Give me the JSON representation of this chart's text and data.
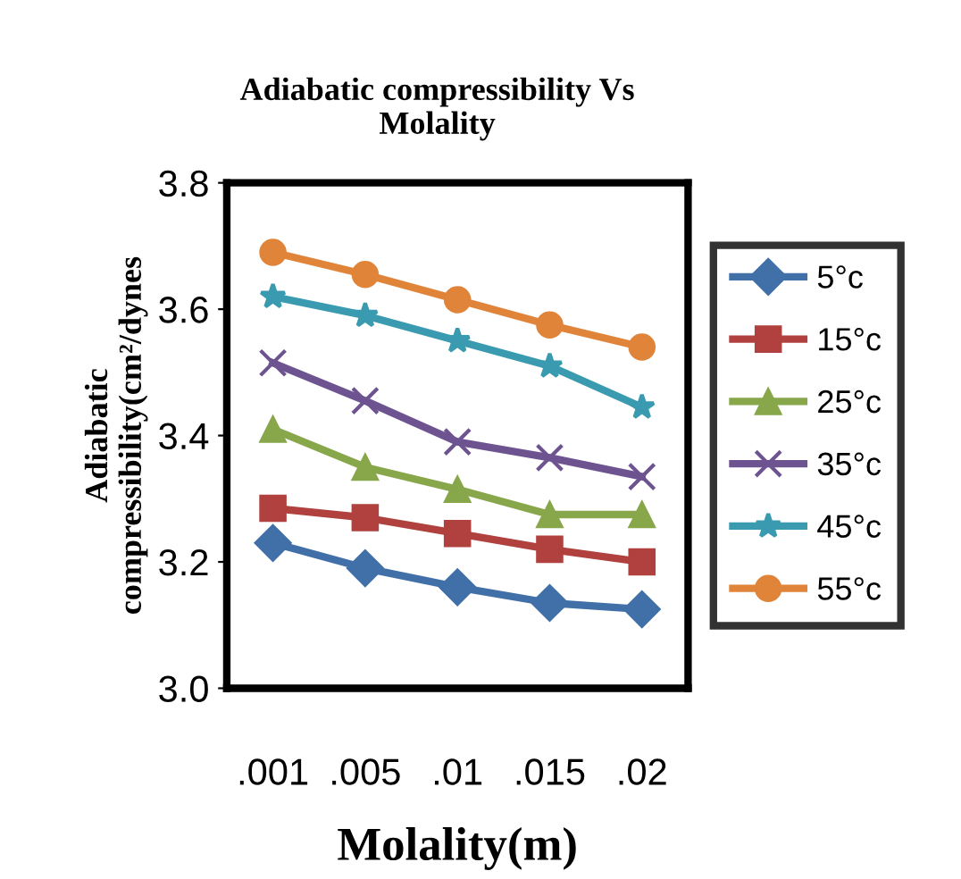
{
  "chart_data": {
    "type": "line",
    "title": "Adiabatic compressibility Vs\nMolality",
    "xlabel": "Molality(m)",
    "ylabel": "Adiabatic\ncompressibility(cm²/dynes",
    "categories": [
      ".001",
      ".005",
      ".01",
      ".015",
      ".02"
    ],
    "series": [
      {
        "name": "5°c",
        "color": "#4170a8",
        "marker": "diamond",
        "values": [
          3.23,
          3.19,
          3.16,
          3.135,
          3.125
        ]
      },
      {
        "name": "15°c",
        "color": "#b0413e",
        "marker": "square",
        "values": [
          3.285,
          3.27,
          3.245,
          3.22,
          3.2
        ]
      },
      {
        "name": "25°c",
        "color": "#88a64a",
        "marker": "triangle",
        "values": [
          3.41,
          3.35,
          3.315,
          3.275,
          3.275
        ]
      },
      {
        "name": "35°c",
        "color": "#6e5391",
        "marker": "cross",
        "values": [
          3.515,
          3.455,
          3.39,
          3.365,
          3.335
        ]
      },
      {
        "name": "45°c",
        "color": "#3a9bb0",
        "marker": "star",
        "values": [
          3.62,
          3.59,
          3.55,
          3.51,
          3.445
        ]
      },
      {
        "name": "55°c",
        "color": "#e0843a",
        "marker": "circle",
        "values": [
          3.69,
          3.655,
          3.615,
          3.575,
          3.54
        ]
      }
    ],
    "ylim": [
      3.0,
      3.8
    ],
    "yticks": [
      {
        "value": 3.0,
        "label": "3.0"
      },
      {
        "value": 3.2,
        "label": "3.2"
      },
      {
        "value": 3.4,
        "label": "3.4"
      },
      {
        "value": 3.6,
        "label": "3.6"
      },
      {
        "value": 3.8,
        "label": "3.8"
      }
    ],
    "grid": false,
    "legend": "right"
  }
}
